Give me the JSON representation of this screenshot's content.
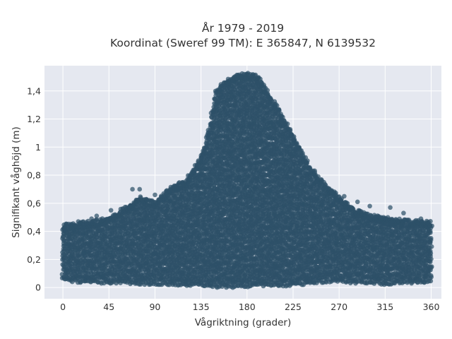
{
  "chart_data": {
    "type": "scatter",
    "title": "År 1979 - 2019",
    "subtitle": "Koordinat (Sweref 99 TM): E 365847, N 6139532",
    "xlabel": "Vågriktning (grader)",
    "ylabel": "Signifikant våghöjd (m)",
    "xlim": [
      -18,
      370
    ],
    "ylim": [
      -0.08,
      1.58
    ],
    "xticks": [
      0,
      45,
      90,
      135,
      180,
      225,
      270,
      315,
      360
    ],
    "xtick_labels": [
      "0",
      "45",
      "90",
      "135",
      "180",
      "225",
      "270",
      "315",
      "360"
    ],
    "yticks": [
      0,
      0.2,
      0.4,
      0.6,
      0.8,
      1.0,
      1.2,
      1.4
    ],
    "ytick_labels": [
      "0",
      "0,2",
      "0,4",
      "0,6",
      "0,8",
      "1",
      "1,2",
      "1,4"
    ],
    "grid": true,
    "colors": {
      "marker": "#2e5068",
      "plot_bg": "#e5e8f0",
      "grid": "#ffffff"
    },
    "envelope": {
      "x": [
        0,
        10,
        20,
        30,
        45,
        60,
        75,
        90,
        105,
        120,
        130,
        140,
        150,
        160,
        170,
        180,
        190,
        200,
        210,
        220,
        230,
        240,
        250,
        260,
        270,
        280,
        290,
        300,
        315,
        330,
        345,
        360
      ],
      "upper": [
        0.42,
        0.43,
        0.44,
        0.45,
        0.47,
        0.54,
        0.62,
        0.58,
        0.68,
        0.74,
        0.84,
        1.0,
        1.38,
        1.45,
        1.49,
        1.5,
        1.48,
        1.37,
        1.25,
        1.12,
        0.98,
        0.85,
        0.76,
        0.68,
        0.62,
        0.56,
        0.52,
        0.49,
        0.47,
        0.46,
        0.45,
        0.44
      ],
      "lower": [
        0.06,
        0.05,
        0.04,
        0.04,
        0.04,
        0.04,
        0.03,
        0.03,
        0.03,
        0.02,
        0.02,
        0.02,
        0.01,
        0.01,
        0.01,
        0.01,
        0.02,
        0.02,
        0.02,
        0.02,
        0.03,
        0.03,
        0.04,
        0.05,
        0.05,
        0.04,
        0.04,
        0.04,
        0.03,
        0.04,
        0.04,
        0.05
      ]
    },
    "outliers": [
      {
        "x": 68,
        "y": 0.7
      },
      {
        "x": 75,
        "y": 0.7
      },
      {
        "x": 90,
        "y": 0.66
      },
      {
        "x": 47,
        "y": 0.55
      },
      {
        "x": 33,
        "y": 0.51
      },
      {
        "x": 28,
        "y": 0.49
      },
      {
        "x": 15,
        "y": 0.47
      },
      {
        "x": 118,
        "y": 0.73
      },
      {
        "x": 262,
        "y": 0.68
      },
      {
        "x": 275,
        "y": 0.65
      },
      {
        "x": 288,
        "y": 0.61
      },
      {
        "x": 300,
        "y": 0.58
      },
      {
        "x": 320,
        "y": 0.57
      },
      {
        "x": 333,
        "y": 0.53
      },
      {
        "x": 350,
        "y": 0.49
      },
      {
        "x": 357,
        "y": 0.46
      }
    ]
  }
}
